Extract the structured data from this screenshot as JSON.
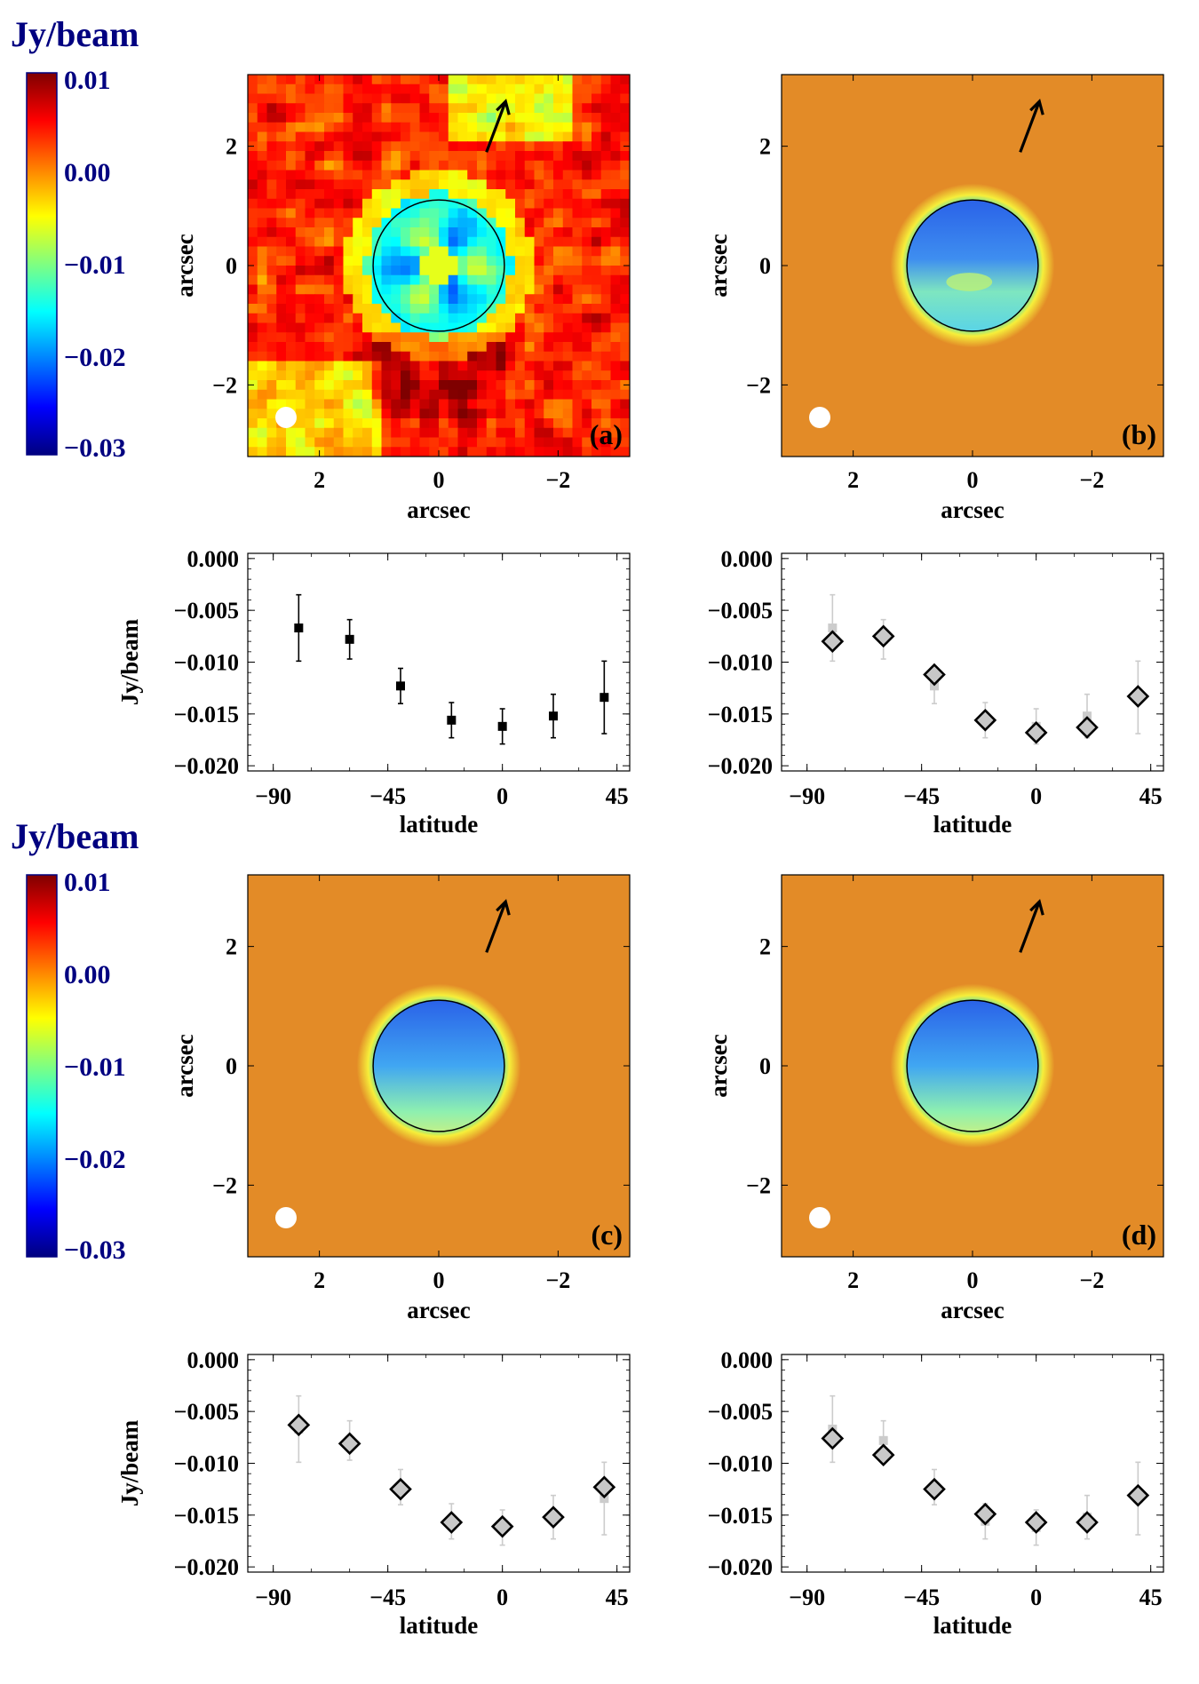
{
  "colorbars": [
    {
      "unit_label": "Jy/beam",
      "ticks": [
        "0.01",
        "0.00",
        "−0.01",
        "−0.02",
        "−0.03"
      ],
      "range": [
        -0.03,
        0.01
      ]
    },
    {
      "unit_label": "Jy/beam",
      "ticks": [
        "0.01",
        "0.00",
        "−0.01",
        "−0.02",
        "−0.03"
      ],
      "range": [
        -0.03,
        0.01
      ]
    }
  ],
  "colors": {
    "background_orange": "#e38b27",
    "colormap": [
      "#00007f",
      "#0000ff",
      "#0080ff",
      "#00ffff",
      "#80ff80",
      "#ffff00",
      "#ff8000",
      "#ff0000",
      "#7f0000"
    ],
    "limb": "#000000",
    "beam": "#ffffff",
    "marker_face_gray": "#c8c8c8",
    "observed_gray": "#cccccc"
  },
  "chart_data": [
    {
      "type": "heatmap",
      "id": "a",
      "panel_label": "(a)",
      "title": "",
      "xlabel": "arcsec",
      "ylabel": "arcsec",
      "xticks": [
        "2",
        "0",
        "−2"
      ],
      "yticks": [
        "2",
        "0",
        "−2"
      ],
      "xlim": [
        3.2,
        -3.2
      ],
      "ylim": [
        -3.2,
        3.2
      ],
      "disk_radius_arcsec": 1.1,
      "kind": "observed"
    },
    {
      "type": "heatmap",
      "id": "b",
      "panel_label": "(b)",
      "title": "",
      "xlabel": "arcsec",
      "ylabel": "arcsec",
      "xticks": [
        "2",
        "0",
        "−2"
      ],
      "yticks": [
        "2",
        "0",
        "−2"
      ],
      "xlim": [
        3.2,
        -3.2
      ],
      "ylim": [
        -3.2,
        3.2
      ],
      "disk_radius_arcsec": 1.1,
      "kind": "model_b"
    },
    {
      "type": "scatter",
      "id": "pa",
      "marker": "square",
      "xlabel": "latitude",
      "ylabel": "Jy/beam",
      "xticks": [
        "−90",
        "−45",
        "0",
        "45"
      ],
      "yticks": [
        "0.000",
        "−0.005",
        "−0.010",
        "−0.015",
        "−0.020"
      ],
      "xlim": [
        -100,
        50
      ],
      "ylim": [
        -0.0205,
        0.0005
      ],
      "x": [
        -80,
        -60,
        -40,
        -20,
        0,
        20,
        40
      ],
      "observed": [
        -0.0067,
        -0.0078,
        -0.0123,
        -0.0156,
        -0.0162,
        -0.0152,
        -0.0134
      ],
      "errors": [
        0.0032,
        0.0019,
        0.0017,
        0.0017,
        0.0017,
        0.0021,
        0.0035
      ],
      "model": null
    },
    {
      "type": "scatter",
      "id": "pb",
      "marker": "diamond",
      "xlabel": "latitude",
      "ylabel": "",
      "xticks": [
        "−90",
        "−45",
        "0",
        "45"
      ],
      "yticks": [
        "0.000",
        "−0.005",
        "−0.010",
        "−0.015",
        "−0.020"
      ],
      "xlim": [
        -100,
        50
      ],
      "ylim": [
        -0.0205,
        0.0005
      ],
      "x": [
        -80,
        -60,
        -40,
        -20,
        0,
        20,
        40
      ],
      "observed": [
        -0.0067,
        -0.0078,
        -0.0123,
        -0.0156,
        -0.0162,
        -0.0152,
        -0.0134
      ],
      "errors": [
        0.0032,
        0.0019,
        0.0017,
        0.0017,
        0.0017,
        0.0021,
        0.0035
      ],
      "model": [
        -0.008,
        -0.0075,
        -0.0112,
        -0.0156,
        -0.0168,
        -0.0163,
        -0.0133
      ]
    },
    {
      "type": "heatmap",
      "id": "c",
      "panel_label": "(c)",
      "title": "",
      "xlabel": "arcsec",
      "ylabel": "arcsec",
      "xticks": [
        "2",
        "0",
        "−2"
      ],
      "yticks": [
        "2",
        "0",
        "−2"
      ],
      "xlim": [
        3.2,
        -3.2
      ],
      "ylim": [
        -3.2,
        3.2
      ],
      "disk_radius_arcsec": 1.1,
      "kind": "model_c"
    },
    {
      "type": "heatmap",
      "id": "d",
      "panel_label": "(d)",
      "title": "",
      "xlabel": "arcsec",
      "ylabel": "arcsec",
      "xticks": [
        "2",
        "0",
        "−2"
      ],
      "yticks": [
        "2",
        "0",
        "−2"
      ],
      "xlim": [
        3.2,
        -3.2
      ],
      "ylim": [
        -3.2,
        3.2
      ],
      "disk_radius_arcsec": 1.1,
      "kind": "model_c"
    },
    {
      "type": "scatter",
      "id": "pc",
      "marker": "diamond",
      "xlabel": "latitude",
      "ylabel": "Jy/beam",
      "xticks": [
        "−90",
        "−45",
        "0",
        "45"
      ],
      "yticks": [
        "0.000",
        "−0.005",
        "−0.010",
        "−0.015",
        "−0.020"
      ],
      "xlim": [
        -100,
        50
      ],
      "ylim": [
        -0.0205,
        0.0005
      ],
      "x": [
        -80,
        -60,
        -40,
        -20,
        0,
        20,
        40
      ],
      "observed": [
        -0.0067,
        -0.0078,
        -0.0123,
        -0.0156,
        -0.0162,
        -0.0152,
        -0.0134
      ],
      "errors": [
        0.0032,
        0.0019,
        0.0017,
        0.0017,
        0.0017,
        0.0021,
        0.0035
      ],
      "model": [
        -0.0063,
        -0.0081,
        -0.0125,
        -0.0157,
        -0.0161,
        -0.0152,
        -0.0123
      ]
    },
    {
      "type": "scatter",
      "id": "pd",
      "marker": "diamond",
      "xlabel": "latitude",
      "ylabel": "",
      "xticks": [
        "−90",
        "−45",
        "0",
        "45"
      ],
      "yticks": [
        "0.000",
        "−0.005",
        "−0.010",
        "−0.015",
        "−0.020"
      ],
      "xlim": [
        -100,
        50
      ],
      "ylim": [
        -0.0205,
        0.0005
      ],
      "x": [
        -80,
        -60,
        -40,
        -20,
        0,
        20,
        40
      ],
      "observed": [
        -0.0067,
        -0.0078,
        -0.0123,
        -0.0156,
        -0.0162,
        -0.0152,
        -0.0134
      ],
      "errors": [
        0.0032,
        0.0019,
        0.0017,
        0.0017,
        0.0017,
        0.0021,
        0.0035
      ],
      "model": [
        -0.0076,
        -0.0092,
        -0.0125,
        -0.0149,
        -0.0157,
        -0.0157,
        -0.0131
      ]
    }
  ]
}
